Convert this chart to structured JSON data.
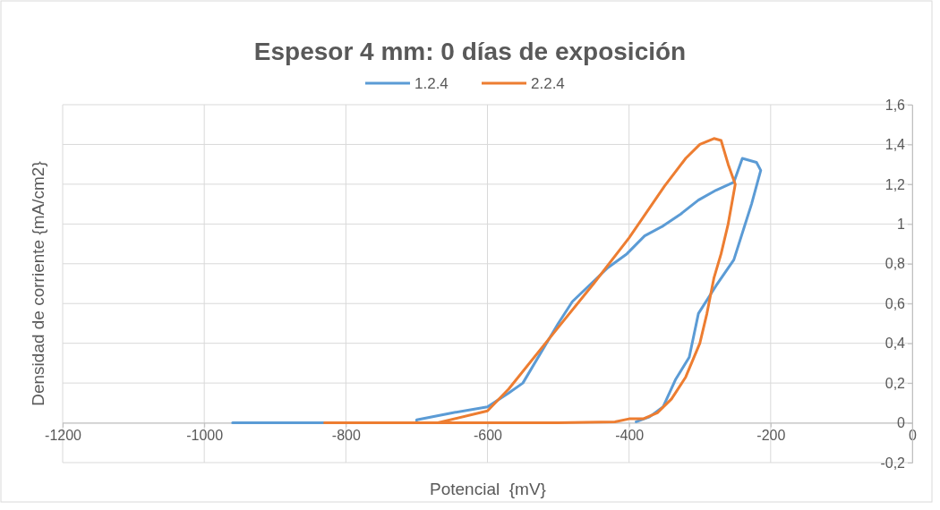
{
  "chart_data": {
    "type": "line",
    "title": "Espesor 4 mm: 0 días de exposición",
    "xlabel": "Potencial  {mV}",
    "ylabel": "Densidad de corriente {mA/cm2}",
    "xlim": [
      -1200,
      0
    ],
    "xticks": [
      -1200,
      -1000,
      -800,
      -600,
      -400,
      -200,
      0
    ],
    "ylim": [
      -0.2,
      1.6
    ],
    "yticks": [
      {
        "value": -0.2,
        "label": "-0,2"
      },
      0,
      {
        "value": 0.2,
        "label": "0,2"
      },
      {
        "value": 0.4,
        "label": "0,4"
      },
      {
        "value": 0.6,
        "label": "0,6"
      },
      {
        "value": 0.8,
        "label": "0,8"
      },
      1,
      {
        "value": 1.2,
        "label": "1,2"
      },
      {
        "value": 1.4,
        "label": "1,4"
      },
      {
        "value": 1.6,
        "label": "1,6"
      }
    ],
    "grid": true,
    "legend": "top",
    "marker": "none",
    "line_style": "solid",
    "series": [
      {
        "name": "1.2.4",
        "color": "#5b9bd5",
        "x": [
          -960,
          -700,
          -700,
          -650,
          -600,
          -570,
          -550,
          -500,
          -480,
          -430,
          -403,
          -378,
          -352,
          -327,
          -302,
          -277,
          -252,
          -240,
          -220,
          -214,
          -227,
          -252,
          -277,
          -302,
          -315,
          -334,
          -352,
          -371,
          -390
        ],
        "values": [
          0,
          0,
          0.015,
          0.05,
          0.08,
          0.15,
          0.2,
          0.5,
          0.61,
          0.78,
          0.85,
          0.94,
          0.99,
          1.05,
          1.12,
          1.17,
          1.21,
          1.33,
          1.31,
          1.27,
          1.1,
          0.82,
          0.69,
          0.55,
          0.33,
          0.22,
          0.08,
          0.03,
          0.005
        ]
      },
      {
        "name": "2.2.4",
        "color": "#ed7d31",
        "x": [
          -670,
          -600,
          -570,
          -500,
          -450,
          -400,
          -350,
          -320,
          -300,
          -280,
          -270,
          -260,
          -250,
          -260,
          -270,
          -280,
          -290,
          -300,
          -320,
          -340,
          -360,
          -380,
          -400,
          -420,
          -500,
          -600,
          -700,
          -830
        ],
        "values": [
          0,
          0.06,
          0.17,
          0.48,
          0.7,
          0.93,
          1.19,
          1.33,
          1.4,
          1.43,
          1.42,
          1.3,
          1.2,
          1.0,
          0.85,
          0.73,
          0.55,
          0.4,
          0.23,
          0.12,
          0.05,
          0.02,
          0.02,
          0.005,
          0,
          0,
          0,
          0
        ]
      }
    ]
  }
}
